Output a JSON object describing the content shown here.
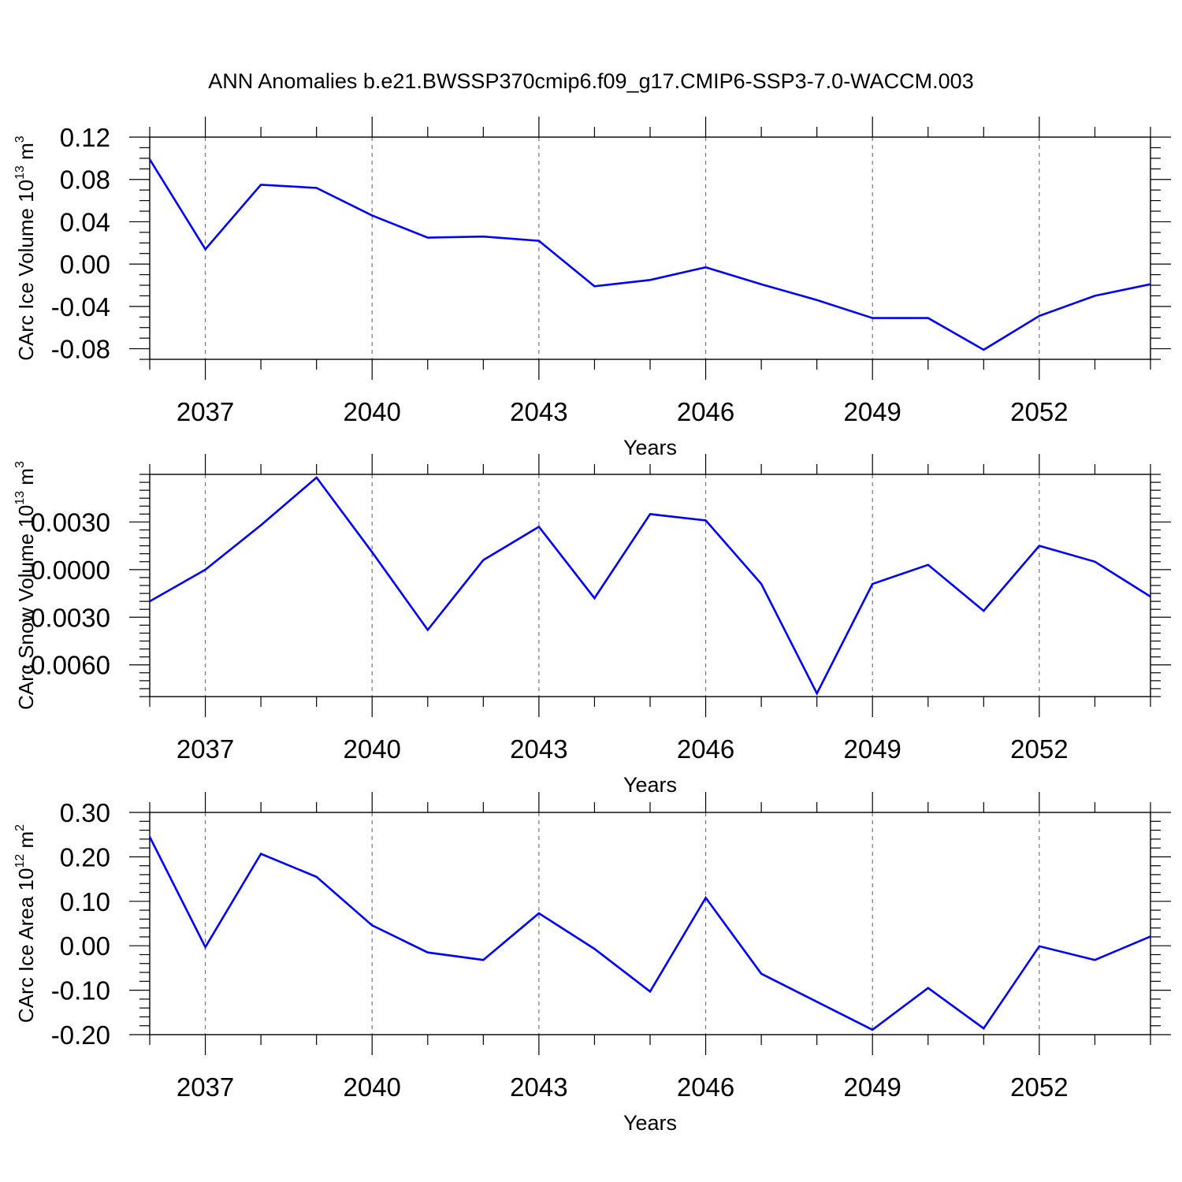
{
  "figure_title": "ANN Anomalies b.e21.BWSSP370cmip6.f09_g17.CMIP6-SSP3-7.0-WACCM.003",
  "chart_data": [
    {
      "type": "line",
      "title": "ANN Anomalies b.e21.BWSSP370cmip6.f09_g17.CMIP6-SSP3-7.0-WACCM.003",
      "xlabel": "Years",
      "ylabel": "CArc Ice Volume 10",
      "ylabel_exponent": "13",
      "ylabel_unit": " m",
      "ylabel_unit_exponent": "3",
      "x": [
        2036,
        2037,
        2038,
        2039,
        2040,
        2041,
        2042,
        2043,
        2044,
        2045,
        2046,
        2047,
        2048,
        2049,
        2050,
        2051,
        2052,
        2053,
        2054
      ],
      "series": [
        {
          "name": "CArc Ice Volume",
          "color": "#0000ff",
          "values": [
            0.099,
            0.014,
            0.075,
            0.072,
            0.046,
            0.025,
            0.026,
            0.022,
            -0.021,
            -0.015,
            -0.003,
            -0.019,
            -0.034,
            -0.051,
            -0.051,
            -0.081,
            -0.049,
            -0.03,
            -0.019
          ]
        }
      ],
      "xlim": [
        2036,
        2054
      ],
      "ylim": [
        -0.09,
        0.12
      ],
      "xticks": [
        2037,
        2040,
        2043,
        2046,
        2049,
        2052
      ],
      "xtick_labels": [
        "2037",
        "2040",
        "2043",
        "2046",
        "2049",
        "2052"
      ],
      "yticks": [
        0.12,
        0.08,
        0.04,
        0.0,
        -0.04,
        -0.08
      ],
      "ytick_labels": [
        "0.12",
        "0.08",
        "0.04",
        "0.00",
        "-0.04",
        "-0.08"
      ],
      "grid": "vertical dashed at major x ticks"
    },
    {
      "type": "line",
      "xlabel": "Years",
      "ylabel": "CArc Snow Volume 10",
      "ylabel_exponent": "13",
      "ylabel_unit": " m",
      "ylabel_unit_exponent": "3",
      "x": [
        2036,
        2037,
        2038,
        2039,
        2040,
        2041,
        2042,
        2043,
        2044,
        2045,
        2046,
        2047,
        2048,
        2049,
        2050,
        2051,
        2052,
        2053,
        2054
      ],
      "series": [
        {
          "name": "CArc Snow Volume",
          "color": "#0000ff",
          "values": [
            -0.002,
            0.0,
            0.0028,
            0.0058,
            0.0011,
            -0.0038,
            0.0006,
            0.0027,
            -0.0018,
            0.0035,
            0.0031,
            -0.0009,
            -0.0078,
            -0.0009,
            0.0003,
            -0.0026,
            0.0015,
            0.0005,
            -0.0017
          ]
        }
      ],
      "xlim": [
        2036,
        2054
      ],
      "ylim": [
        -0.008,
        0.006
      ],
      "xticks": [
        2037,
        2040,
        2043,
        2046,
        2049,
        2052
      ],
      "xtick_labels": [
        "2037",
        "2040",
        "2043",
        "2046",
        "2049",
        "2052"
      ],
      "yticks": [
        0.003,
        0.0,
        -0.003,
        -0.006
      ],
      "ytick_labels": [
        "0.0030",
        "0.0000",
        "-0.0030",
        "-0.0060"
      ],
      "grid": "vertical dashed at major x ticks"
    },
    {
      "type": "line",
      "xlabel": "Years",
      "ylabel": "CArc Ice Area 10",
      "ylabel_exponent": "12",
      "ylabel_unit": " m",
      "ylabel_unit_exponent": "2",
      "x": [
        2036,
        2037,
        2038,
        2039,
        2040,
        2041,
        2042,
        2043,
        2044,
        2045,
        2046,
        2047,
        2048,
        2049,
        2050,
        2051,
        2052,
        2053,
        2054
      ],
      "series": [
        {
          "name": "CArc Ice Area",
          "color": "#0000ff",
          "values": [
            0.245,
            -0.003,
            0.207,
            0.155,
            0.046,
            -0.015,
            -0.032,
            0.073,
            -0.007,
            -0.103,
            0.108,
            -0.063,
            -0.126,
            -0.189,
            -0.095,
            -0.186,
            -0.001,
            -0.032,
            0.021
          ]
        }
      ],
      "xlim": [
        2036,
        2054
      ],
      "ylim": [
        -0.2,
        0.3
      ],
      "xticks": [
        2037,
        2040,
        2043,
        2046,
        2049,
        2052
      ],
      "xtick_labels": [
        "2037",
        "2040",
        "2043",
        "2046",
        "2049",
        "2052"
      ],
      "yticks": [
        0.3,
        0.2,
        0.1,
        0.0,
        -0.1,
        -0.2
      ],
      "ytick_labels": [
        "0.30",
        "0.20",
        "0.10",
        "0.00",
        "-0.10",
        "-0.20"
      ],
      "grid": "vertical dashed at major x ticks"
    }
  ]
}
